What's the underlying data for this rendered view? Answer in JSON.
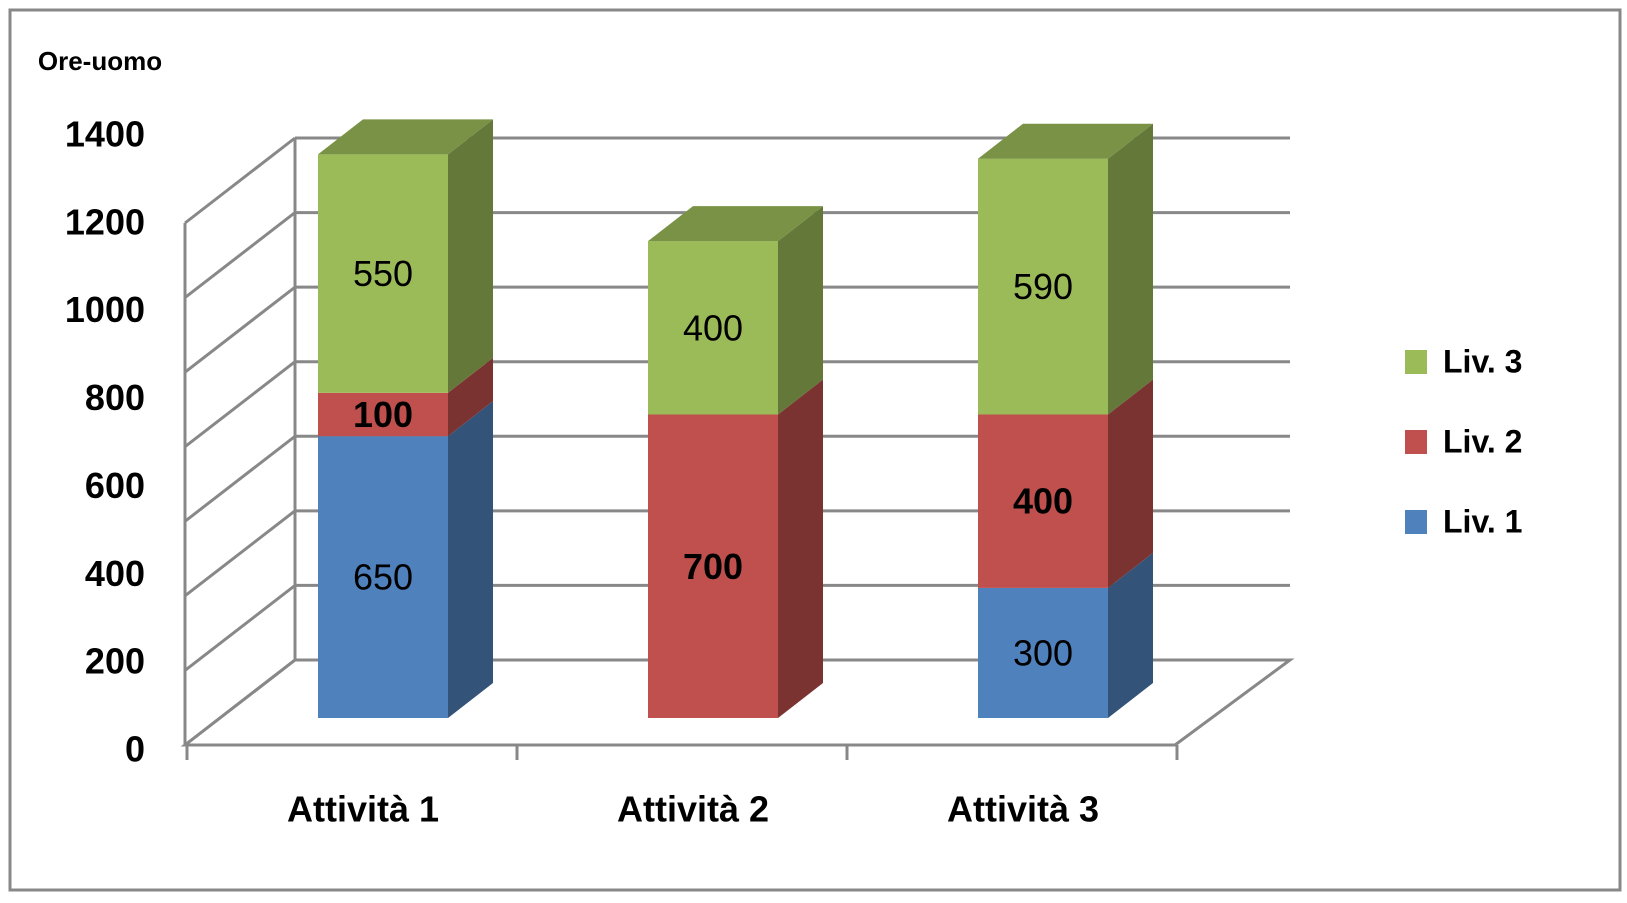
{
  "chart_data": {
    "type": "bar3d_stacked",
    "y_label": "Ore-uomo",
    "categories": [
      "Attività 1",
      "Attività 2",
      "Attività 3"
    ],
    "series": [
      {
        "name": "Liv. 1",
        "color": "#4f81bd",
        "values": [
          650,
          null,
          300
        ]
      },
      {
        "name": "Liv. 2",
        "color": "#c0504d",
        "values": [
          100,
          700,
          400
        ]
      },
      {
        "name": "Liv. 3",
        "color": "#9bbb59",
        "values": [
          550,
          400,
          590
        ]
      }
    ],
    "ylim": [
      0,
      1400
    ],
    "yticks": [
      0,
      200,
      400,
      600,
      800,
      1000,
      1200,
      1400
    ],
    "grid": true,
    "legend": "right"
  }
}
